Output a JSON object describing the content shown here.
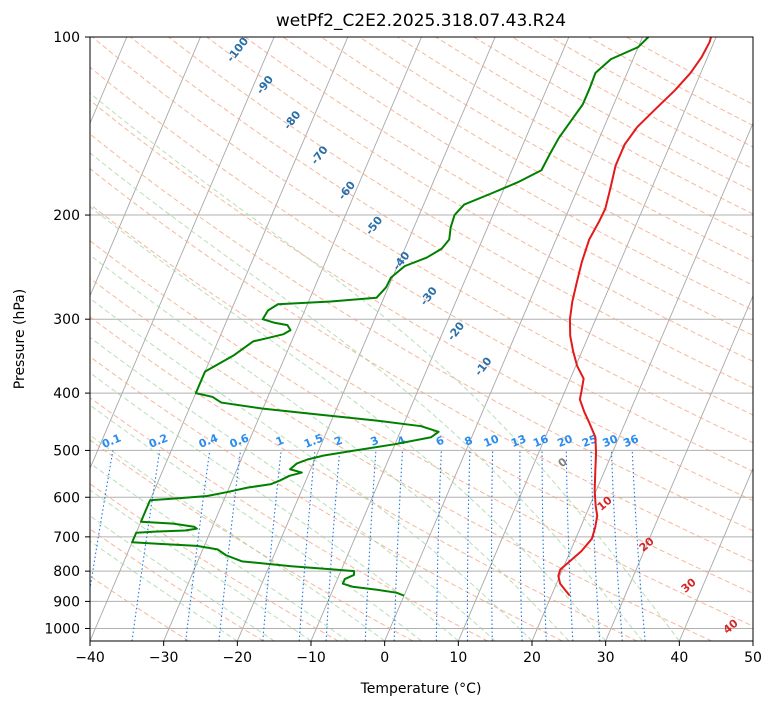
{
  "chart_data": {
    "type": "line",
    "title": "wetPf2_C2E2.2025.318.07.43.R24",
    "xlabel": "Temperature (°C)",
    "ylabel": "Pressure (hPa)",
    "xlim": [
      -40,
      50
    ],
    "ylim": [
      1050,
      100
    ],
    "y_scale": "log",
    "grid": true,
    "x_ticks": [
      -40,
      -30,
      -20,
      -10,
      0,
      10,
      20,
      30,
      40,
      50
    ],
    "y_ticks": [
      100,
      200,
      300,
      400,
      500,
      600,
      700,
      800,
      900,
      1000
    ],
    "dry_adiabat_labels": [
      "-100",
      "-90",
      "-80",
      "-70",
      "-60",
      "-50",
      "-40",
      "-30",
      "-20",
      "-10"
    ],
    "mixing_ratio_labels": [
      "0.1",
      "0.2",
      "0.4",
      "0.6",
      "1",
      "1.5",
      "2",
      "3",
      "4",
      "6",
      "8",
      "10",
      "13",
      "16",
      "20",
      "25",
      "30",
      "36"
    ],
    "moist_adiabat_labels": [
      "0",
      "10",
      "20",
      "30",
      "40"
    ],
    "series": [
      {
        "role": "temperature",
        "color": "#e31a1c",
        "points": [
          [
            22.5,
            880
          ],
          [
            21.5,
            860
          ],
          [
            20.5,
            840
          ],
          [
            19.8,
            815
          ],
          [
            19.7,
            795
          ],
          [
            20.5,
            770
          ],
          [
            21.5,
            740
          ],
          [
            22.2,
            705
          ],
          [
            22.0,
            675
          ],
          [
            21.6,
            645
          ],
          [
            20.8,
            620
          ],
          [
            19.8,
            585
          ],
          [
            18.7,
            540
          ],
          [
            17.8,
            505
          ],
          [
            16.8,
            475
          ],
          [
            15.2,
            450
          ],
          [
            13.8,
            430
          ],
          [
            12.5,
            410
          ],
          [
            12.2,
            395
          ],
          [
            11.8,
            378
          ],
          [
            10.2,
            360
          ],
          [
            8.8,
            340
          ],
          [
            7.5,
            320
          ],
          [
            6.5,
            300
          ],
          [
            5.8,
            280
          ],
          [
            5.3,
            260
          ],
          [
            4.8,
            240
          ],
          [
            4.5,
            220
          ],
          [
            4.8,
            205
          ],
          [
            4.9,
            195
          ],
          [
            4.4,
            180
          ],
          [
            3.8,
            165
          ],
          [
            3.8,
            152
          ],
          [
            4.5,
            142
          ],
          [
            6.0,
            132
          ],
          [
            7.5,
            123
          ],
          [
            8.6,
            115
          ],
          [
            9.2,
            108
          ],
          [
            9.4,
            102
          ],
          [
            9.3,
            100
          ]
        ]
      },
      {
        "role": "dewpoint",
        "color": "#008000",
        "points": [
          [
            0.0,
            880
          ],
          [
            -1.2,
            870
          ],
          [
            -4.0,
            860
          ],
          [
            -7.5,
            850
          ],
          [
            -9.0,
            840
          ],
          [
            -9.0,
            825
          ],
          [
            -8.0,
            812
          ],
          [
            -8.2,
            800
          ],
          [
            -11.0,
            795
          ],
          [
            -17.0,
            785
          ],
          [
            -24.0,
            770
          ],
          [
            -26.5,
            752
          ],
          [
            -28.0,
            735
          ],
          [
            -31.0,
            725
          ],
          [
            -36.5,
            719
          ],
          [
            -40.0,
            715
          ],
          [
            -40.0,
            689
          ],
          [
            -37.5,
            686
          ],
          [
            -33.5,
            683
          ],
          [
            -32.0,
            678
          ],
          [
            -32.5,
            673
          ],
          [
            -35.5,
            665
          ],
          [
            -40.0,
            660
          ],
          [
            -40.0,
            607
          ],
          [
            -36.0,
            602
          ],
          [
            -32.5,
            597
          ],
          [
            -30.0,
            588
          ],
          [
            -27.5,
            578
          ],
          [
            -24.5,
            570
          ],
          [
            -23.5,
            562
          ],
          [
            -22.5,
            552
          ],
          [
            -21.0,
            545
          ],
          [
            -22.8,
            538
          ],
          [
            -22.2,
            526
          ],
          [
            -21.0,
            518
          ],
          [
            -19.0,
            510
          ],
          [
            -15.0,
            500
          ],
          [
            -10.0,
            488
          ],
          [
            -5.5,
            475
          ],
          [
            -4.8,
            465
          ],
          [
            -7.5,
            455
          ],
          [
            -14.0,
            445
          ],
          [
            -22.0,
            435
          ],
          [
            -30.0,
            425
          ],
          [
            -36.0,
            415
          ],
          [
            -37.5,
            406
          ],
          [
            -40.0,
            400
          ],
          [
            -40.0,
            368
          ],
          [
            -37.0,
            345
          ],
          [
            -35.2,
            327
          ],
          [
            -33.5,
            323
          ],
          [
            -31.5,
            318
          ],
          [
            -30.8,
            313
          ],
          [
            -31.5,
            307
          ],
          [
            -33.5,
            304
          ],
          [
            -35.2,
            300
          ],
          [
            -35.0,
            290
          ],
          [
            -34.0,
            283
          ],
          [
            -27.0,
            280
          ],
          [
            -21.0,
            276
          ],
          [
            -20.3,
            265
          ],
          [
            -20.2,
            255
          ],
          [
            -19.0,
            244
          ],
          [
            -16.5,
            236
          ],
          [
            -15.0,
            228
          ],
          [
            -14.5,
            220
          ],
          [
            -15.0,
            210
          ],
          [
            -15.2,
            200
          ],
          [
            -14.5,
            192
          ],
          [
            -11.5,
            184
          ],
          [
            -8.5,
            176
          ],
          [
            -6.0,
            168
          ],
          [
            -5.8,
            158
          ],
          [
            -5.5,
            148
          ],
          [
            -4.8,
            138
          ],
          [
            -4.2,
            130
          ],
          [
            -4.2,
            122
          ],
          [
            -4.3,
            115
          ],
          [
            -3.0,
            109
          ],
          [
            0.0,
            104
          ],
          [
            0.8,
            100
          ]
        ]
      }
    ]
  }
}
